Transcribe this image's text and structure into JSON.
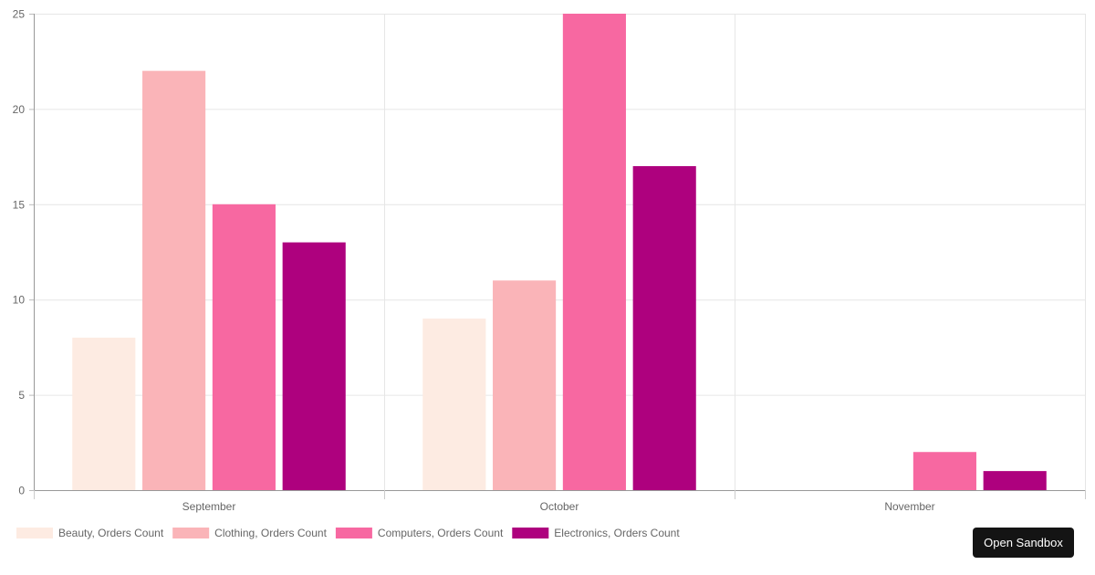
{
  "chart_data": {
    "type": "bar",
    "categories": [
      "September",
      "October",
      "November"
    ],
    "series": [
      {
        "name": "Beauty, Orders Count",
        "color": "#fdebe2",
        "values": [
          8,
          9,
          0
        ]
      },
      {
        "name": "Clothing, Orders Count",
        "color": "#fab4b8",
        "values": [
          22,
          11,
          0
        ]
      },
      {
        "name": "Computers, Orders Count",
        "color": "#f768a1",
        "values": [
          15,
          25,
          2
        ]
      },
      {
        "name": "Electronics, Orders Count",
        "color": "#ae017e",
        "values": [
          13,
          17,
          1
        ]
      }
    ],
    "yticks": [
      0,
      5,
      10,
      15,
      20,
      25
    ],
    "ylim": [
      0,
      25
    ],
    "grid": true,
    "legend_position": "bottom-left"
  },
  "actions": {
    "open_sandbox_label": "Open Sandbox"
  }
}
